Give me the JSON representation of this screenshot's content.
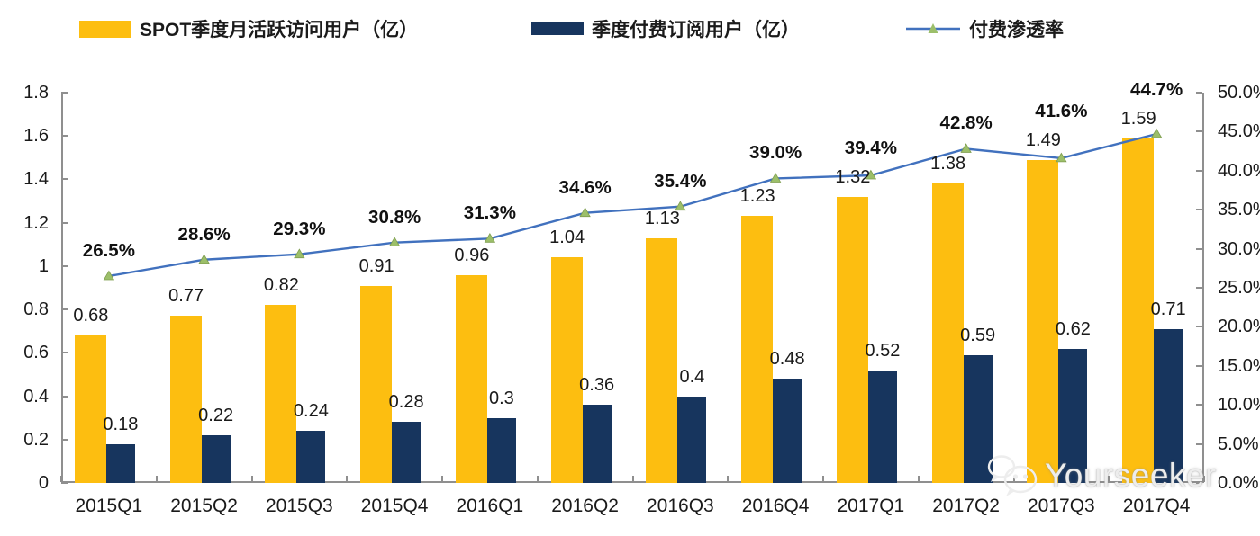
{
  "legend": {
    "items": [
      {
        "label": "SPOT季度月活跃访问用户（亿）",
        "type": "bar",
        "color": "#FDBE10"
      },
      {
        "label": "季度付费订阅用户（亿）",
        "type": "bar",
        "color": "#17355E"
      },
      {
        "label": "付费渗透率",
        "type": "line",
        "color": "#4171BE",
        "marker_color": "#9CBF6A"
      }
    ]
  },
  "chart_data": {
    "type": "bar+line",
    "categories": [
      "2015Q1",
      "2015Q2",
      "2015Q3",
      "2015Q4",
      "2016Q1",
      "2016Q2",
      "2016Q3",
      "2016Q4",
      "2017Q1",
      "2017Q2",
      "2017Q3",
      "2017Q4"
    ],
    "series": [
      {
        "name": "SPOT季度月活跃访问用户（亿）",
        "type": "bar",
        "axis": "left",
        "color": "#FDBE10",
        "values": [
          0.68,
          0.77,
          0.82,
          0.91,
          0.96,
          1.04,
          1.13,
          1.23,
          1.32,
          1.38,
          1.49,
          1.59
        ],
        "labels": [
          "0.68",
          "0.77",
          "0.82",
          "0.91",
          "0.96",
          "1.04",
          "1.13",
          "1.23",
          "1.32",
          "1.38",
          "1.49",
          "1.59"
        ]
      },
      {
        "name": "季度付费订阅用户（亿）",
        "type": "bar",
        "axis": "left",
        "color": "#17355E",
        "values": [
          0.18,
          0.22,
          0.24,
          0.28,
          0.3,
          0.36,
          0.4,
          0.48,
          0.52,
          0.59,
          0.62,
          0.71
        ],
        "labels": [
          "0.18",
          "0.22",
          "0.24",
          "0.28",
          "0.3",
          "0.36",
          "0.4",
          "0.48",
          "0.52",
          "0.59",
          "0.62",
          "0.71"
        ]
      },
      {
        "name": "付费渗透率",
        "type": "line",
        "axis": "right",
        "color": "#4171BE",
        "marker": "triangle",
        "marker_color": "#9CBF6A",
        "values": [
          26.5,
          28.6,
          29.3,
          30.8,
          31.3,
          34.6,
          35.4,
          39.0,
          39.4,
          42.8,
          41.6,
          44.7
        ],
        "labels": [
          "26.5%",
          "28.6%",
          "29.3%",
          "30.8%",
          "31.3%",
          "34.6%",
          "35.4%",
          "39.0%",
          "39.4%",
          "42.8%",
          "41.6%",
          "44.7%"
        ]
      }
    ],
    "left_axis": {
      "min": 0,
      "max": 1.8,
      "step": 0.2,
      "ticks": [
        "1.8",
        "1.6",
        "1.4",
        "1.2",
        "1",
        "0.8",
        "0.6",
        "0.4",
        "0.2",
        "0"
      ]
    },
    "right_axis": {
      "min": 0,
      "max": 50,
      "step": 5,
      "ticks": [
        "50.0%",
        "45.0%",
        "40.0%",
        "35.0%",
        "30.0%",
        "25.0%",
        "20.0%",
        "15.0%",
        "10.0%",
        "5.0%",
        "0.0%"
      ]
    },
    "grid": false,
    "legend_position": "top"
  },
  "watermark": {
    "text": "Yourseeker",
    "icon": "wechat-icon"
  }
}
